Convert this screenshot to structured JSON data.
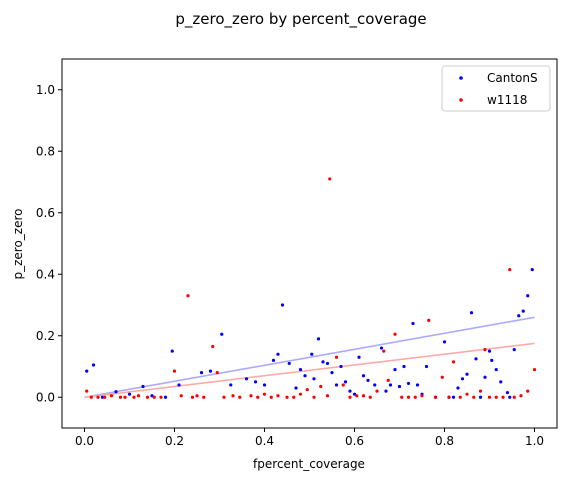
{
  "figure": {
    "suptitle": "p_zero_zero by percent_coverage"
  },
  "chart_data": {
    "type": "scatter",
    "title": "p_zero_zero by percent_coverage",
    "xlabel": "fpercent_coverage",
    "ylabel": "p_zero_zero",
    "xlim": [
      -0.05,
      1.05
    ],
    "ylim": [
      -0.1,
      1.1
    ],
    "xticks": [
      "0.0",
      "0.2",
      "0.4",
      "0.6",
      "0.8",
      "1.0"
    ],
    "yticks": [
      "0.0",
      "0.2",
      "0.4",
      "0.6",
      "0.8",
      "1.0"
    ],
    "grid": false,
    "legend_position": "top-right",
    "series": [
      {
        "name": "CantonS",
        "color": "#0000ff",
        "trend_color": "#aaaaff",
        "trend": [
          [
            0.0,
            0.0
          ],
          [
            1.0,
            0.26
          ]
        ],
        "points": [
          [
            0.005,
            0.085
          ],
          [
            0.02,
            0.105
          ],
          [
            0.04,
            0.0
          ],
          [
            0.07,
            0.018
          ],
          [
            0.1,
            0.01
          ],
          [
            0.13,
            0.035
          ],
          [
            0.15,
            0.005
          ],
          [
            0.18,
            0.0
          ],
          [
            0.195,
            0.15
          ],
          [
            0.21,
            0.04
          ],
          [
            0.26,
            0.08
          ],
          [
            0.28,
            0.085
          ],
          [
            0.305,
            0.205
          ],
          [
            0.325,
            0.04
          ],
          [
            0.36,
            0.06
          ],
          [
            0.38,
            0.05
          ],
          [
            0.4,
            0.04
          ],
          [
            0.42,
            0.12
          ],
          [
            0.43,
            0.14
          ],
          [
            0.44,
            0.3
          ],
          [
            0.455,
            0.11
          ],
          [
            0.47,
            0.03
          ],
          [
            0.48,
            0.09
          ],
          [
            0.49,
            0.07
          ],
          [
            0.505,
            0.14
          ],
          [
            0.51,
            0.06
          ],
          [
            0.52,
            0.19
          ],
          [
            0.53,
            0.115
          ],
          [
            0.54,
            0.11
          ],
          [
            0.55,
            0.08
          ],
          [
            0.56,
            0.04
          ],
          [
            0.57,
            0.1
          ],
          [
            0.58,
            0.05
          ],
          [
            0.59,
            0.02
          ],
          [
            0.6,
            0.01
          ],
          [
            0.61,
            0.13
          ],
          [
            0.62,
            0.07
          ],
          [
            0.63,
            0.055
          ],
          [
            0.645,
            0.04
          ],
          [
            0.66,
            0.16
          ],
          [
            0.67,
            0.02
          ],
          [
            0.68,
            0.04
          ],
          [
            0.69,
            0.09
          ],
          [
            0.7,
            0.035
          ],
          [
            0.71,
            0.1
          ],
          [
            0.72,
            0.045
          ],
          [
            0.73,
            0.24
          ],
          [
            0.74,
            0.04
          ],
          [
            0.75,
            0.01
          ],
          [
            0.76,
            0.1
          ],
          [
            0.78,
            0.0
          ],
          [
            0.8,
            0.18
          ],
          [
            0.81,
            0.0
          ],
          [
            0.82,
            0.0
          ],
          [
            0.83,
            0.03
          ],
          [
            0.84,
            0.06
          ],
          [
            0.85,
            0.075
          ],
          [
            0.86,
            0.275
          ],
          [
            0.87,
            0.125
          ],
          [
            0.88,
            0.0
          ],
          [
            0.89,
            0.065
          ],
          [
            0.9,
            0.15
          ],
          [
            0.905,
            0.12
          ],
          [
            0.915,
            0.09
          ],
          [
            0.925,
            0.05
          ],
          [
            0.94,
            0.015
          ],
          [
            0.945,
            0.0
          ],
          [
            0.955,
            0.155
          ],
          [
            0.965,
            0.265
          ],
          [
            0.975,
            0.28
          ],
          [
            0.985,
            0.33
          ],
          [
            0.995,
            0.415
          ]
        ]
      },
      {
        "name": "w1118",
        "color": "#ff0000",
        "trend_color": "#ffaaaa",
        "trend": [
          [
            0.0,
            0.0
          ],
          [
            1.0,
            0.175
          ]
        ],
        "points": [
          [
            0.005,
            0.02
          ],
          [
            0.015,
            0.0
          ],
          [
            0.03,
            0.0
          ],
          [
            0.045,
            0.0
          ],
          [
            0.06,
            0.005
          ],
          [
            0.08,
            0.0
          ],
          [
            0.09,
            0.0
          ],
          [
            0.11,
            0.0
          ],
          [
            0.12,
            0.005
          ],
          [
            0.14,
            0.0
          ],
          [
            0.155,
            0.0
          ],
          [
            0.17,
            0.0
          ],
          [
            0.2,
            0.085
          ],
          [
            0.215,
            0.005
          ],
          [
            0.23,
            0.33
          ],
          [
            0.24,
            0.0
          ],
          [
            0.25,
            0.005
          ],
          [
            0.265,
            0.0
          ],
          [
            0.285,
            0.165
          ],
          [
            0.295,
            0.08
          ],
          [
            0.31,
            0.0
          ],
          [
            0.33,
            0.005
          ],
          [
            0.345,
            0.0
          ],
          [
            0.37,
            0.005
          ],
          [
            0.385,
            0.0
          ],
          [
            0.4,
            0.01
          ],
          [
            0.415,
            0.0
          ],
          [
            0.43,
            0.005
          ],
          [
            0.45,
            0.0
          ],
          [
            0.465,
            0.0
          ],
          [
            0.48,
            0.01
          ],
          [
            0.495,
            0.025
          ],
          [
            0.51,
            0.0
          ],
          [
            0.525,
            0.035
          ],
          [
            0.54,
            0.005
          ],
          [
            0.545,
            0.71
          ],
          [
            0.56,
            0.13
          ],
          [
            0.575,
            0.04
          ],
          [
            0.59,
            0.0
          ],
          [
            0.605,
            0.005
          ],
          [
            0.62,
            0.005
          ],
          [
            0.635,
            0.0
          ],
          [
            0.65,
            0.02
          ],
          [
            0.665,
            0.15
          ],
          [
            0.675,
            0.055
          ],
          [
            0.69,
            0.205
          ],
          [
            0.705,
            0.0
          ],
          [
            0.72,
            0.0
          ],
          [
            0.735,
            0.0
          ],
          [
            0.75,
            0.005
          ],
          [
            0.765,
            0.25
          ],
          [
            0.78,
            0.0
          ],
          [
            0.795,
            0.065
          ],
          [
            0.81,
            0.0
          ],
          [
            0.82,
            0.115
          ],
          [
            0.835,
            0.0
          ],
          [
            0.85,
            0.01
          ],
          [
            0.865,
            0.0
          ],
          [
            0.88,
            0.02
          ],
          [
            0.89,
            0.155
          ],
          [
            0.9,
            0.0
          ],
          [
            0.915,
            0.0
          ],
          [
            0.93,
            0.0
          ],
          [
            0.945,
            0.415
          ],
          [
            0.955,
            0.0
          ],
          [
            0.97,
            0.005
          ],
          [
            0.985,
            0.02
          ],
          [
            1.0,
            0.09
          ]
        ]
      }
    ]
  }
}
